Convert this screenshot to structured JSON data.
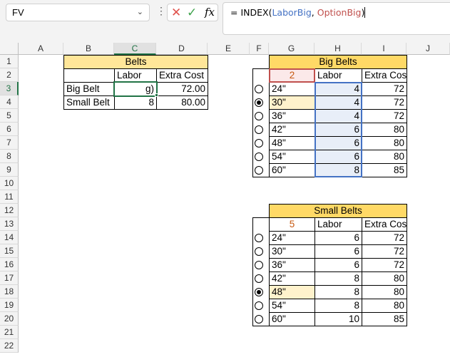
{
  "name_box": "FV",
  "formula": {
    "prefix": "= INDEX(",
    "arg1": "LaborBig",
    "sep": ", ",
    "arg2": "OptionBig",
    "suffix": ")"
  },
  "colors": {
    "arg1": "#4472C4",
    "arg2": "#C0504D",
    "header_light": "#FFE699",
    "header_dark": "#FFD966",
    "selected_fill": "#FFF2CC",
    "active": "#217346"
  },
  "icons": {
    "cancel": "x-icon",
    "enter": "check-icon",
    "function": "fx-icon"
  },
  "columns": [
    "A",
    "B",
    "C",
    "D",
    "E",
    "F",
    "G",
    "H",
    "I",
    "J"
  ],
  "rows": [
    "1",
    "2",
    "3",
    "4",
    "5",
    "6",
    "7",
    "8",
    "9",
    "10",
    "11",
    "12",
    "13",
    "14",
    "15",
    "16",
    "17",
    "18",
    "19",
    "20",
    "21",
    "22"
  ],
  "active_cell": "C3",
  "belts": {
    "title": "Belts",
    "headers": [
      "",
      "Labor",
      "Extra Cost"
    ],
    "rows": [
      [
        "Big Belt",
        "g)",
        "72.00"
      ],
      [
        "Small Belt",
        "8",
        "80.00"
      ]
    ]
  },
  "big_belts": {
    "title": "Big Belts",
    "option_value": "2",
    "headers": [
      "Labor",
      "Extra Cost"
    ],
    "selected_index": 2,
    "rows": [
      [
        "24\"",
        "4",
        "72"
      ],
      [
        "30\"",
        "4",
        "72"
      ],
      [
        "36\"",
        "4",
        "72"
      ],
      [
        "42\"",
        "6",
        "80"
      ],
      [
        "48\"",
        "6",
        "80"
      ],
      [
        "54\"",
        "6",
        "80"
      ],
      [
        "60\"",
        "8",
        "85"
      ]
    ]
  },
  "small_belts": {
    "title": "Small Belts",
    "option_value": "5",
    "headers": [
      "Labor",
      "Extra Cost"
    ],
    "selected_index": 5,
    "rows": [
      [
        "24\"",
        "6",
        "72"
      ],
      [
        "30\"",
        "6",
        "72"
      ],
      [
        "36\"",
        "6",
        "72"
      ],
      [
        "42\"",
        "8",
        "80"
      ],
      [
        "48\"",
        "8",
        "80"
      ],
      [
        "54\"",
        "8",
        "80"
      ],
      [
        "60\"",
        "10",
        "85"
      ]
    ]
  }
}
